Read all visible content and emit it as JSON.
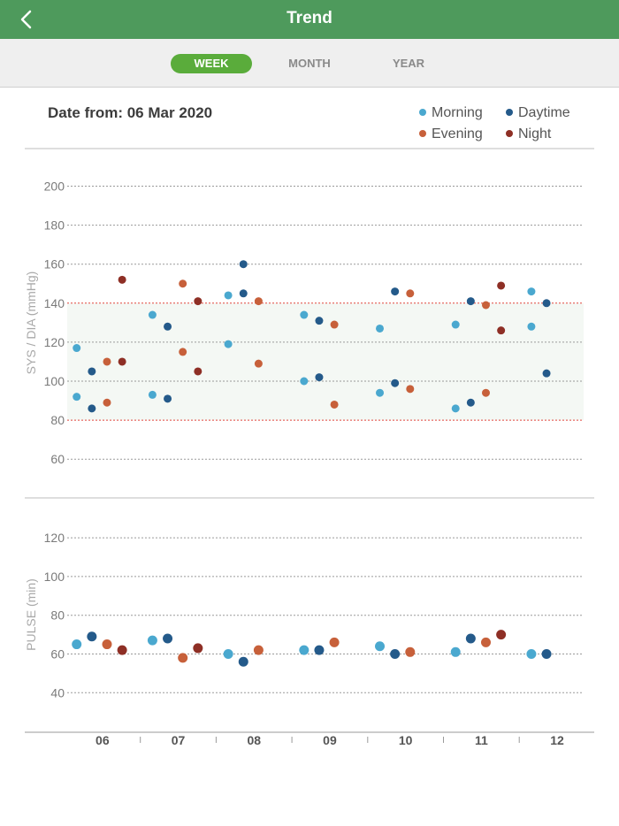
{
  "header": {
    "title": "Trend",
    "back_icon": "chevron-left-icon"
  },
  "tabs": [
    {
      "label": "WEEK",
      "active": true
    },
    {
      "label": "MONTH",
      "active": false
    },
    {
      "label": "YEAR",
      "active": false
    }
  ],
  "date_label": "Date from: 06 Mar 2020",
  "legend": [
    {
      "name": "Morning",
      "color": "#4aa8cf"
    },
    {
      "name": "Daytime",
      "color": "#245a8a"
    },
    {
      "name": "Evening",
      "color": "#c7603a"
    },
    {
      "name": "Night",
      "color": "#8e2f25"
    }
  ],
  "chart_data": [
    {
      "type": "scatter",
      "ylabel": "SYS / DIA (mmHg)",
      "ylim": [
        50,
        210
      ],
      "yticks": [
        60,
        80,
        100,
        120,
        140,
        160,
        180,
        200
      ],
      "xlim": [
        0,
        7
      ],
      "x_ticks": [
        "06",
        "07",
        "08",
        "09",
        "10",
        "11",
        "12"
      ],
      "normal_band": [
        80,
        140
      ],
      "grid": true,
      "series": [
        {
          "name": "Morning",
          "color": "#4aa8cf",
          "points": [
            [
              0,
              117
            ],
            [
              0,
              92
            ],
            [
              1,
              134
            ],
            [
              1,
              93
            ],
            [
              2,
              144
            ],
            [
              2,
              119
            ],
            [
              3,
              134
            ],
            [
              3,
              100
            ],
            [
              4,
              127
            ],
            [
              4,
              94
            ],
            [
              5,
              129
            ],
            [
              5,
              86
            ],
            [
              6,
              146
            ],
            [
              6,
              128
            ]
          ]
        },
        {
          "name": "Daytime",
          "color": "#245a8a",
          "points": [
            [
              0,
              105
            ],
            [
              0,
              86
            ],
            [
              1,
              128
            ],
            [
              1,
              91
            ],
            [
              2,
              160
            ],
            [
              2,
              145
            ],
            [
              3,
              131
            ],
            [
              3,
              102
            ],
            [
              4,
              146
            ],
            [
              4,
              99
            ],
            [
              5,
              141
            ],
            [
              5,
              89
            ],
            [
              6,
              140
            ],
            [
              6,
              104
            ]
          ]
        },
        {
          "name": "Evening",
          "color": "#c7603a",
          "points": [
            [
              0,
              110
            ],
            [
              0,
              89
            ],
            [
              1,
              150
            ],
            [
              1,
              115
            ],
            [
              2,
              141
            ],
            [
              2,
              109
            ],
            [
              3,
              129
            ],
            [
              3,
              88
            ],
            [
              4,
              145
            ],
            [
              4,
              96
            ],
            [
              5,
              139
            ],
            [
              5,
              94
            ]
          ]
        },
        {
          "name": "Night",
          "color": "#8e2f25",
          "points": [
            [
              0,
              152
            ],
            [
              0,
              110
            ],
            [
              1,
              141
            ],
            [
              1,
              105
            ],
            [
              5,
              149
            ],
            [
              5,
              126
            ]
          ]
        }
      ]
    },
    {
      "type": "scatter",
      "ylabel": "PULSE (min)",
      "ylim": [
        30,
        130
      ],
      "yticks": [
        40,
        60,
        80,
        100,
        120
      ],
      "xlim": [
        0,
        7
      ],
      "x_ticks": [
        "06",
        "07",
        "08",
        "09",
        "10",
        "11",
        "12"
      ],
      "grid": true,
      "series": [
        {
          "name": "Morning",
          "color": "#4aa8cf",
          "points": [
            [
              0,
              65
            ],
            [
              1,
              67
            ],
            [
              2,
              60
            ],
            [
              3,
              62
            ],
            [
              4,
              64
            ],
            [
              5,
              61
            ],
            [
              6,
              60
            ]
          ]
        },
        {
          "name": "Daytime",
          "color": "#245a8a",
          "points": [
            [
              0,
              69
            ],
            [
              1,
              68
            ],
            [
              2,
              56
            ],
            [
              3,
              62
            ],
            [
              4,
              60
            ],
            [
              5,
              68
            ],
            [
              6,
              60
            ]
          ]
        },
        {
          "name": "Evening",
          "color": "#c7603a",
          "points": [
            [
              0,
              65
            ],
            [
              1,
              58
            ],
            [
              2,
              62
            ],
            [
              3,
              66
            ],
            [
              4,
              61
            ],
            [
              5,
              66
            ]
          ]
        },
        {
          "name": "Night",
          "color": "#8e2f25",
          "points": [
            [
              0,
              62
            ],
            [
              1,
              63
            ],
            [
              5,
              70
            ]
          ]
        }
      ]
    }
  ]
}
